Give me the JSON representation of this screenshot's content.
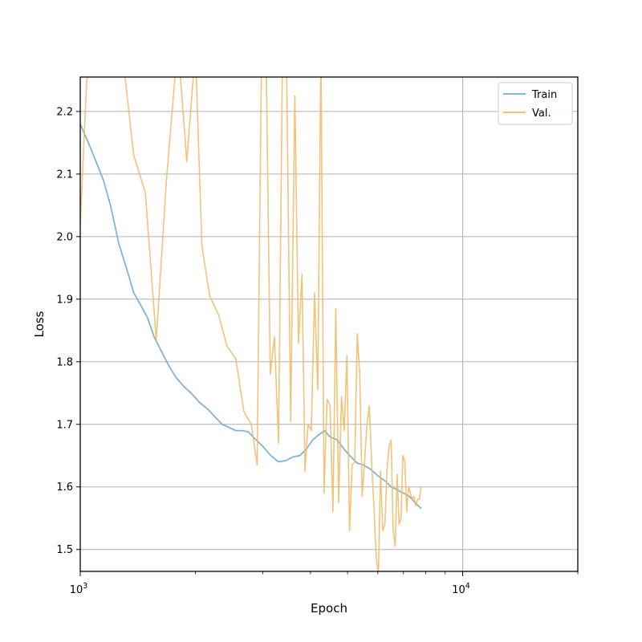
{
  "chart_data": {
    "type": "line",
    "title": "",
    "xlabel": "Epoch",
    "ylabel": "Loss",
    "xscale": "log",
    "xlim": [
      1000,
      20000
    ],
    "ylim": [
      1.465,
      2.255
    ],
    "grid": true,
    "legend_position": "top-right",
    "x_ticks": [
      {
        "value": 1000,
        "base": "10",
        "exp": "3"
      },
      {
        "value": 10000,
        "base": "10",
        "exp": "4"
      }
    ],
    "y_ticks": [
      {
        "value": 1.5,
        "label": "1.5"
      },
      {
        "value": 1.6,
        "label": "1.6"
      },
      {
        "value": 1.7,
        "label": "1.7"
      },
      {
        "value": 1.8,
        "label": "1.8"
      },
      {
        "value": 1.9,
        "label": "1.9"
      },
      {
        "value": 2.0,
        "label": "2.0"
      },
      {
        "value": 2.1,
        "label": "2.1"
      },
      {
        "value": 2.2,
        "label": "2.2"
      }
    ],
    "series": [
      {
        "name": "Train",
        "color": "#6baed6",
        "x": [
          1000,
          1050,
          1100,
          1150,
          1200,
          1260,
          1320,
          1380,
          1440,
          1500,
          1560,
          1620,
          1700,
          1780,
          1870,
          1950,
          2050,
          2150,
          2250,
          2350,
          2450,
          2550,
          2650,
          2750,
          2850,
          3000,
          3150,
          3300,
          3450,
          3600,
          3750,
          3900,
          4050,
          4200,
          4350,
          4500,
          4700,
          4900,
          5100,
          5300,
          5500,
          5750,
          6000,
          6250,
          6500,
          6750,
          7000,
          7250,
          7500,
          7800
        ],
        "y": [
          2.18,
          2.15,
          2.12,
          2.09,
          2.05,
          1.99,
          1.95,
          1.91,
          1.89,
          1.87,
          1.84,
          1.82,
          1.795,
          1.775,
          1.76,
          1.75,
          1.735,
          1.725,
          1.712,
          1.7,
          1.695,
          1.69,
          1.69,
          1.688,
          1.678,
          1.665,
          1.65,
          1.64,
          1.642,
          1.648,
          1.65,
          1.66,
          1.675,
          1.683,
          1.69,
          1.68,
          1.675,
          1.66,
          1.648,
          1.638,
          1.635,
          1.628,
          1.618,
          1.61,
          1.6,
          1.595,
          1.59,
          1.585,
          1.575,
          1.565
        ]
      },
      {
        "name": "Val.",
        "color": "#f0b861",
        "x": [
          1000,
          1040,
          1090,
          1200,
          1290,
          1380,
          1480,
          1580,
          1680,
          1800,
          1900,
          2000,
          2080,
          2180,
          2300,
          2420,
          2550,
          2680,
          2800,
          2900,
          2980,
          3060,
          3140,
          3220,
          3300,
          3380,
          3460,
          3550,
          3640,
          3720,
          3800,
          3870,
          3940,
          4020,
          4100,
          4180,
          4260,
          4340,
          4420,
          4500,
          4580,
          4660,
          4740,
          4820,
          4900,
          4980,
          5060,
          5140,
          5220,
          5300,
          5380,
          5460,
          5540,
          5620,
          5700,
          5780,
          5860,
          5940,
          6020,
          6100,
          6180,
          6260,
          6340,
          6420,
          6500,
          6580,
          6660,
          6740,
          6820,
          6900,
          6980,
          7060,
          7140,
          7220,
          7300,
          7380,
          7460,
          7540,
          7620,
          7700,
          7780
        ],
        "y": [
          2.02,
          2.25,
          2.29,
          2.31,
          2.29,
          2.13,
          2.07,
          1.835,
          2.09,
          2.31,
          2.12,
          2.3,
          1.985,
          1.905,
          1.875,
          1.825,
          1.805,
          1.72,
          1.7,
          1.635,
          2.3,
          2.3,
          1.78,
          1.84,
          1.67,
          2.3,
          2.3,
          1.705,
          2.225,
          1.83,
          1.94,
          1.625,
          1.7,
          1.69,
          1.91,
          1.755,
          2.3,
          1.59,
          1.74,
          1.73,
          1.56,
          1.885,
          1.575,
          1.745,
          1.69,
          1.81,
          1.53,
          1.635,
          1.64,
          1.845,
          1.78,
          1.585,
          1.64,
          1.7,
          1.73,
          1.64,
          1.57,
          1.49,
          1.46,
          1.625,
          1.53,
          1.54,
          1.625,
          1.665,
          1.675,
          1.53,
          1.505,
          1.62,
          1.54,
          1.55,
          1.65,
          1.64,
          1.56,
          1.6,
          1.59,
          1.58,
          1.585,
          1.57,
          1.58,
          1.58,
          1.6
        ]
      }
    ]
  }
}
